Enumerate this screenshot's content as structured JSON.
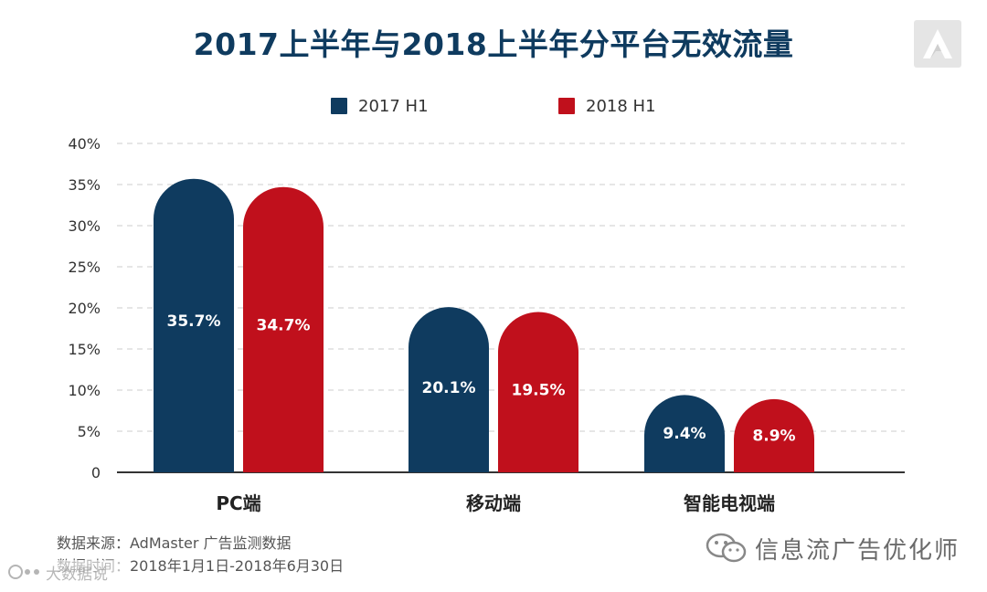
{
  "title": "2017上半年与2018上半年分平台无效流量",
  "legend": {
    "items": [
      {
        "label": "2017 H1",
        "color": "#0f3b5f"
      },
      {
        "label": "2018 H1",
        "color": "#c0101c"
      }
    ]
  },
  "chart_data": {
    "type": "bar",
    "title": "2017上半年与2018上半年分平台无效流量",
    "categories": [
      "PC端",
      "移动端",
      "智能电视端"
    ],
    "series": [
      {
        "name": "2017 H1",
        "color": "#0f3b5f",
        "values": [
          35.7,
          20.1,
          9.4
        ],
        "labels": [
          "35.7%",
          "20.1%",
          "9.4%"
        ]
      },
      {
        "name": "2018 H1",
        "color": "#c0101c",
        "values": [
          34.7,
          19.5,
          8.9
        ],
        "labels": [
          "34.7%",
          "19.5%",
          "8.9%"
        ]
      }
    ],
    "ylim": [
      0,
      40
    ],
    "yticks": [
      0,
      5,
      10,
      15,
      20,
      25,
      30,
      35,
      40
    ],
    "ytick_labels": [
      "0",
      "5%",
      "10%",
      "15%",
      "20%",
      "25%",
      "30%",
      "35%",
      "40%"
    ],
    "xlabel": "",
    "ylabel": "",
    "grid": true,
    "legend_position": "top-center"
  },
  "footnotes": {
    "source": "数据来源：AdMaster 广告监测数据",
    "period": "数据时间：2018年1月1日-2018年6月30日"
  },
  "watermarks": {
    "left_text": "大数据说",
    "right_text": "信息流广告优化师"
  },
  "icons": {
    "logo": "admaster-logo-icon",
    "wechat": "wechat-icon"
  }
}
